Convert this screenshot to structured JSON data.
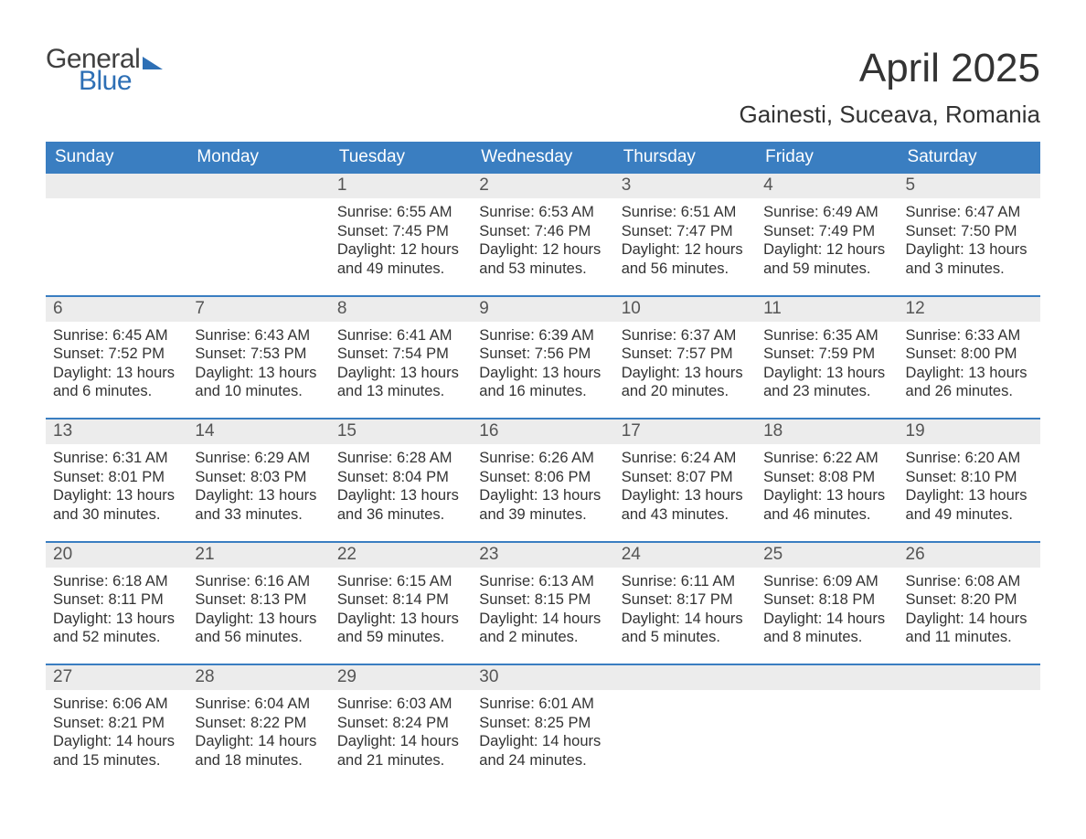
{
  "brand": {
    "word1": "General",
    "word2": "Blue",
    "accent_color": "#2d6fb5"
  },
  "title": "April 2025",
  "location": "Gainesti, Suceava, Romania",
  "colors": {
    "header_bg": "#3a7ec1",
    "header_text": "#ffffff",
    "daynum_bg": "#ececec",
    "daynum_text": "#555555",
    "body_text": "#333333",
    "week_border": "#3a7ec1",
    "page_bg": "#ffffff"
  },
  "typography": {
    "title_size_pt": 33,
    "subtitle_size_pt": 20,
    "weekday_size_pt": 14,
    "body_size_pt": 12
  },
  "layout": {
    "columns": 7,
    "rows": 5,
    "aspect_ratio": "1188:918"
  },
  "weekdays": [
    "Sunday",
    "Monday",
    "Tuesday",
    "Wednesday",
    "Thursday",
    "Friday",
    "Saturday"
  ],
  "weeks": [
    [
      {
        "n": "",
        "sr": "",
        "ss": "",
        "dl": ""
      },
      {
        "n": "",
        "sr": "",
        "ss": "",
        "dl": ""
      },
      {
        "n": "1",
        "sr": "Sunrise: 6:55 AM",
        "ss": "Sunset: 7:45 PM",
        "dl": "Daylight: 12 hours and 49 minutes."
      },
      {
        "n": "2",
        "sr": "Sunrise: 6:53 AM",
        "ss": "Sunset: 7:46 PM",
        "dl": "Daylight: 12 hours and 53 minutes."
      },
      {
        "n": "3",
        "sr": "Sunrise: 6:51 AM",
        "ss": "Sunset: 7:47 PM",
        "dl": "Daylight: 12 hours and 56 minutes."
      },
      {
        "n": "4",
        "sr": "Sunrise: 6:49 AM",
        "ss": "Sunset: 7:49 PM",
        "dl": "Daylight: 12 hours and 59 minutes."
      },
      {
        "n": "5",
        "sr": "Sunrise: 6:47 AM",
        "ss": "Sunset: 7:50 PM",
        "dl": "Daylight: 13 hours and 3 minutes."
      }
    ],
    [
      {
        "n": "6",
        "sr": "Sunrise: 6:45 AM",
        "ss": "Sunset: 7:52 PM",
        "dl": "Daylight: 13 hours and 6 minutes."
      },
      {
        "n": "7",
        "sr": "Sunrise: 6:43 AM",
        "ss": "Sunset: 7:53 PM",
        "dl": "Daylight: 13 hours and 10 minutes."
      },
      {
        "n": "8",
        "sr": "Sunrise: 6:41 AM",
        "ss": "Sunset: 7:54 PM",
        "dl": "Daylight: 13 hours and 13 minutes."
      },
      {
        "n": "9",
        "sr": "Sunrise: 6:39 AM",
        "ss": "Sunset: 7:56 PM",
        "dl": "Daylight: 13 hours and 16 minutes."
      },
      {
        "n": "10",
        "sr": "Sunrise: 6:37 AM",
        "ss": "Sunset: 7:57 PM",
        "dl": "Daylight: 13 hours and 20 minutes."
      },
      {
        "n": "11",
        "sr": "Sunrise: 6:35 AM",
        "ss": "Sunset: 7:59 PM",
        "dl": "Daylight: 13 hours and 23 minutes."
      },
      {
        "n": "12",
        "sr": "Sunrise: 6:33 AM",
        "ss": "Sunset: 8:00 PM",
        "dl": "Daylight: 13 hours and 26 minutes."
      }
    ],
    [
      {
        "n": "13",
        "sr": "Sunrise: 6:31 AM",
        "ss": "Sunset: 8:01 PM",
        "dl": "Daylight: 13 hours and 30 minutes."
      },
      {
        "n": "14",
        "sr": "Sunrise: 6:29 AM",
        "ss": "Sunset: 8:03 PM",
        "dl": "Daylight: 13 hours and 33 minutes."
      },
      {
        "n": "15",
        "sr": "Sunrise: 6:28 AM",
        "ss": "Sunset: 8:04 PM",
        "dl": "Daylight: 13 hours and 36 minutes."
      },
      {
        "n": "16",
        "sr": "Sunrise: 6:26 AM",
        "ss": "Sunset: 8:06 PM",
        "dl": "Daylight: 13 hours and 39 minutes."
      },
      {
        "n": "17",
        "sr": "Sunrise: 6:24 AM",
        "ss": "Sunset: 8:07 PM",
        "dl": "Daylight: 13 hours and 43 minutes."
      },
      {
        "n": "18",
        "sr": "Sunrise: 6:22 AM",
        "ss": "Sunset: 8:08 PM",
        "dl": "Daylight: 13 hours and 46 minutes."
      },
      {
        "n": "19",
        "sr": "Sunrise: 6:20 AM",
        "ss": "Sunset: 8:10 PM",
        "dl": "Daylight: 13 hours and 49 minutes."
      }
    ],
    [
      {
        "n": "20",
        "sr": "Sunrise: 6:18 AM",
        "ss": "Sunset: 8:11 PM",
        "dl": "Daylight: 13 hours and 52 minutes."
      },
      {
        "n": "21",
        "sr": "Sunrise: 6:16 AM",
        "ss": "Sunset: 8:13 PM",
        "dl": "Daylight: 13 hours and 56 minutes."
      },
      {
        "n": "22",
        "sr": "Sunrise: 6:15 AM",
        "ss": "Sunset: 8:14 PM",
        "dl": "Daylight: 13 hours and 59 minutes."
      },
      {
        "n": "23",
        "sr": "Sunrise: 6:13 AM",
        "ss": "Sunset: 8:15 PM",
        "dl": "Daylight: 14 hours and 2 minutes."
      },
      {
        "n": "24",
        "sr": "Sunrise: 6:11 AM",
        "ss": "Sunset: 8:17 PM",
        "dl": "Daylight: 14 hours and 5 minutes."
      },
      {
        "n": "25",
        "sr": "Sunrise: 6:09 AM",
        "ss": "Sunset: 8:18 PM",
        "dl": "Daylight: 14 hours and 8 minutes."
      },
      {
        "n": "26",
        "sr": "Sunrise: 6:08 AM",
        "ss": "Sunset: 8:20 PM",
        "dl": "Daylight: 14 hours and 11 minutes."
      }
    ],
    [
      {
        "n": "27",
        "sr": "Sunrise: 6:06 AM",
        "ss": "Sunset: 8:21 PM",
        "dl": "Daylight: 14 hours and 15 minutes."
      },
      {
        "n": "28",
        "sr": "Sunrise: 6:04 AM",
        "ss": "Sunset: 8:22 PM",
        "dl": "Daylight: 14 hours and 18 minutes."
      },
      {
        "n": "29",
        "sr": "Sunrise: 6:03 AM",
        "ss": "Sunset: 8:24 PM",
        "dl": "Daylight: 14 hours and 21 minutes."
      },
      {
        "n": "30",
        "sr": "Sunrise: 6:01 AM",
        "ss": "Sunset: 8:25 PM",
        "dl": "Daylight: 14 hours and 24 minutes."
      },
      {
        "n": "",
        "sr": "",
        "ss": "",
        "dl": ""
      },
      {
        "n": "",
        "sr": "",
        "ss": "",
        "dl": ""
      },
      {
        "n": "",
        "sr": "",
        "ss": "",
        "dl": ""
      }
    ]
  ]
}
